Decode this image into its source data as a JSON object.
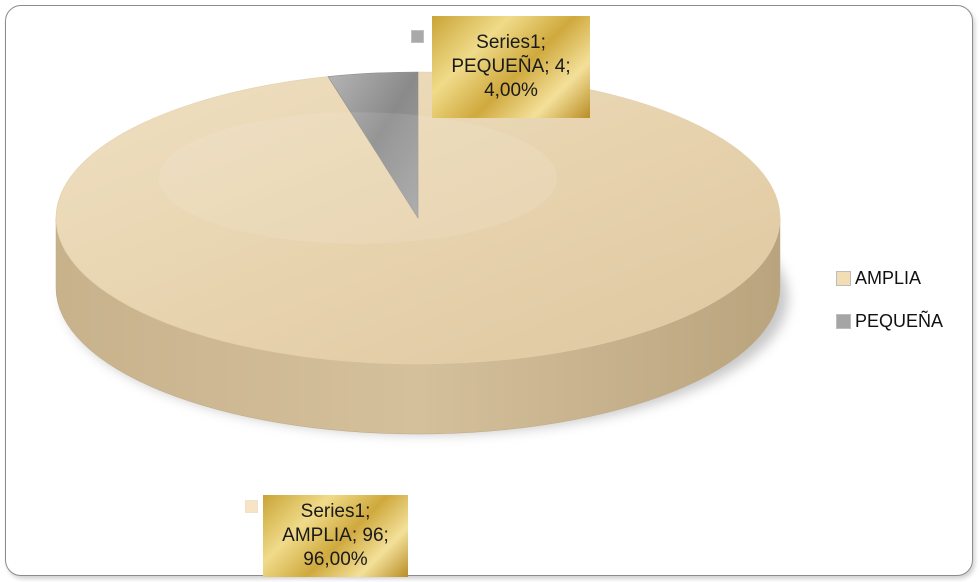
{
  "chart_data": {
    "type": "pie",
    "categories": [
      "AMPLIA",
      "PEQUEÑA"
    ],
    "values": [
      96,
      4
    ],
    "percents": [
      "96,00%",
      "4,00%"
    ],
    "series": [
      {
        "name": "Series1",
        "values": [
          96,
          4
        ]
      }
    ],
    "data_labels": [
      {
        "line1": "Series1;",
        "line2": "AMPLIA; 96;",
        "line3": "96,00%"
      },
      {
        "line1": "Series1;",
        "line2": "PEQUEÑA; 4;",
        "line3": "4,00%"
      }
    ],
    "legend": {
      "position": "right",
      "items": [
        {
          "label": "AMPLIA"
        },
        {
          "label": "PEQUEÑA"
        }
      ]
    },
    "colors": {
      "AMPLIA": "#ead8b6",
      "AMPLIA_side": "#cdbb95",
      "PEQUEÑA": "#9c9c9c",
      "PEQUEÑA_side": "#7e7e7e",
      "label_gold": "#e2c462"
    },
    "style": "3d-pie"
  }
}
